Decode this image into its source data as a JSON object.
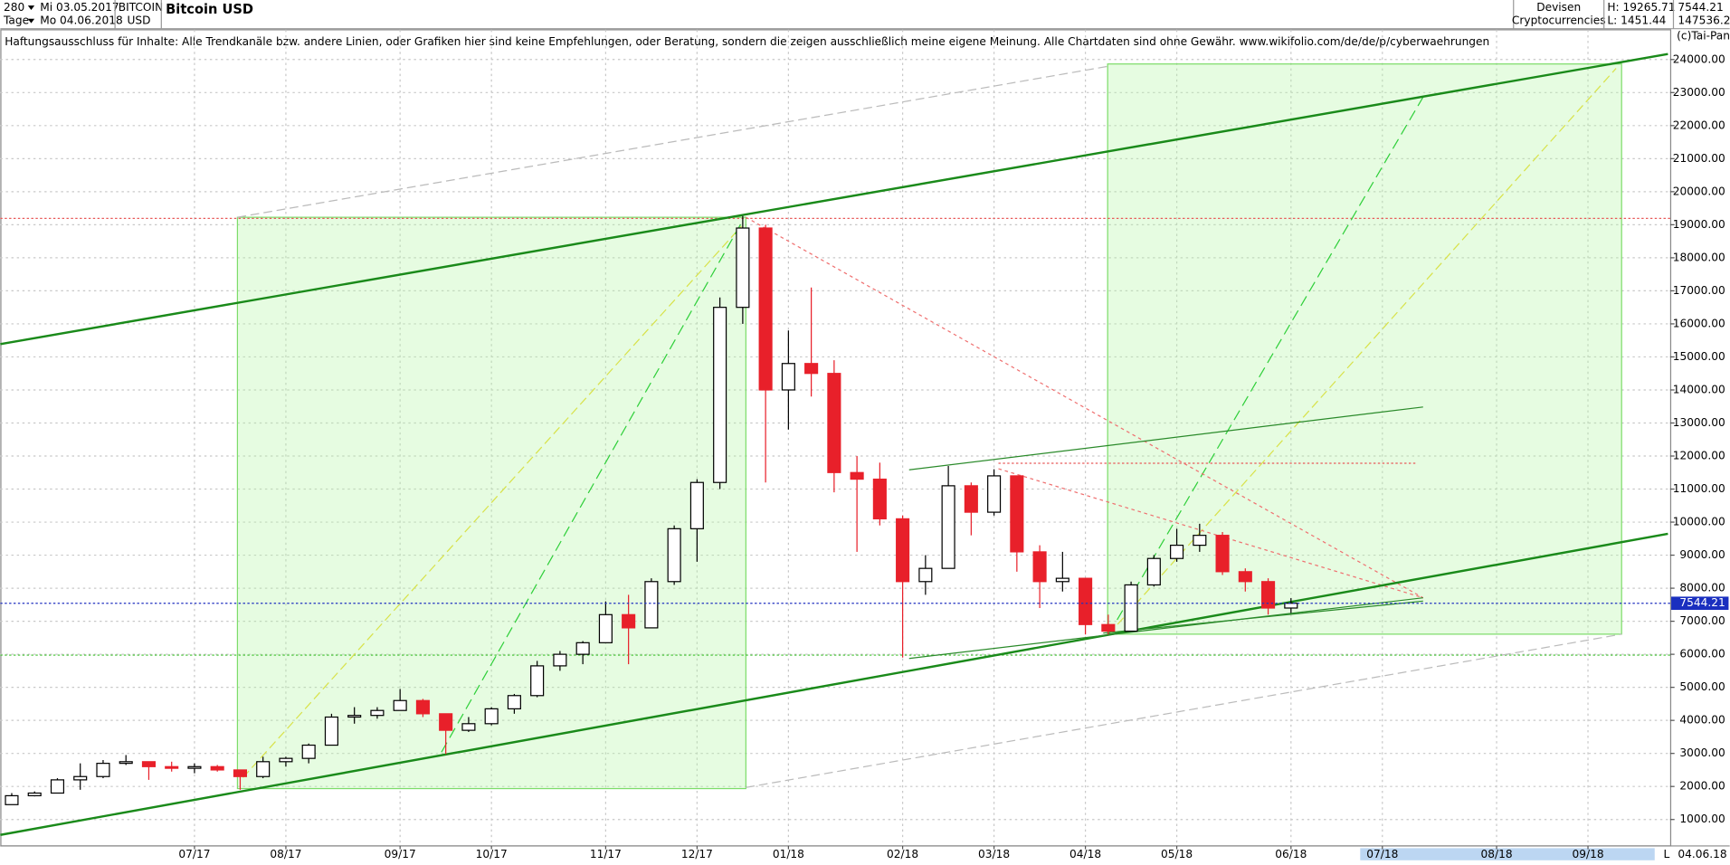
{
  "header": {
    "period": "280",
    "unit": "Tage",
    "from": "Mi 03.05.2017",
    "to": "Mo 04.06.2018",
    "symbol": "BITCOIN",
    "currency": "USD",
    "group": "Devisen",
    "subgroup": "Cryptocurrencies",
    "high": "H: 19265.71",
    "low": "L: 1451.44",
    "last": "7544.21",
    "volume": "147536.2",
    "disclaimer": "Haftungsausschluss für Inhalte: Alle Trendkanäle bzw. andere Linien, oder Grafiken hier sind keine Empfehlungen, oder Beratung, sondern die zeigen ausschließlich meine eigene Meinung. Alle Chartdaten sind ohne Gewähr.  www.wikifolio.com/de/de/p/cyberwaehrungen",
    "copyright": "(c)Tai-Pan",
    "footer_mode": "L",
    "footer_date": "04.06.18"
  },
  "chart_data": {
    "type": "candlestick",
    "title": "Bitcoin USD",
    "categories": [
      null,
      null,
      null,
      null,
      null,
      null,
      null,
      null,
      "07/17",
      null,
      null,
      null,
      "08/17",
      null,
      null,
      null,
      null,
      "09/17",
      null,
      null,
      null,
      "10/17",
      null,
      null,
      null,
      null,
      "11/17",
      null,
      null,
      null,
      "12/17",
      null,
      null,
      null,
      "01/18",
      null,
      null,
      null,
      null,
      "02/18",
      null,
      null,
      null,
      "03/18",
      null,
      null,
      null,
      "04/18",
      null,
      null,
      null,
      "05/18",
      null,
      null,
      null,
      null,
      "06/18",
      null,
      null,
      null,
      "07/18",
      null,
      null,
      null,
      null,
      "08/18",
      null,
      null,
      null,
      "09/18",
      null,
      null,
      null
    ],
    "open": [
      1450,
      1720,
      1800,
      2200,
      2300,
      2700,
      2750,
      2600,
      2550,
      2600,
      2500,
      2300,
      2750,
      2850,
      3250,
      4100,
      4150,
      4300,
      4600,
      4200,
      3700,
      3900,
      4350,
      4750,
      5650,
      6000,
      6350,
      7200,
      6800,
      8200,
      9800,
      11200,
      16500,
      18900,
      14000,
      14800,
      14500,
      11500,
      11300,
      10100,
      8200,
      8600,
      11100,
      10300,
      11400,
      9100,
      8200,
      8300,
      6900,
      6700,
      8100,
      8900,
      9300,
      9600,
      8500,
      8200,
      7400,
      null,
      null,
      null,
      null,
      null,
      null,
      null,
      null,
      null,
      null,
      null,
      null,
      null,
      null,
      null,
      null
    ],
    "high": [
      1800,
      1850,
      2250,
      2700,
      2800,
      2950,
      2750,
      2750,
      2700,
      2650,
      2500,
      2900,
      2900,
      3300,
      4200,
      4400,
      4400,
      4950,
      4650,
      4200,
      4100,
      4400,
      4800,
      5800,
      6100,
      6400,
      7600,
      7800,
      8300,
      9900,
      11300,
      16800,
      19265.71,
      19000,
      15800,
      17100,
      14900,
      12000,
      11800,
      10200,
      9000,
      11700,
      11200,
      11600,
      11400,
      9300,
      9100,
      8300,
      7200,
      8200,
      9000,
      9800,
      9950,
      9700,
      8600,
      8300,
      7700,
      null,
      null,
      null,
      null,
      null,
      null,
      null,
      null,
      null,
      null,
      null,
      null,
      null,
      null,
      null,
      null
    ],
    "low": [
      1451.44,
      1700,
      1800,
      1900,
      2250,
      2650,
      2200,
      2450,
      2400,
      2450,
      1900,
      2250,
      2600,
      2700,
      3250,
      3900,
      4050,
      4300,
      4100,
      2980,
      3650,
      3850,
      4200,
      4700,
      5500,
      5700,
      6350,
      5700,
      6800,
      8100,
      8800,
      11000,
      16000,
      11200,
      12800,
      13800,
      10900,
      9100,
      9900,
      5900,
      7800,
      8600,
      9600,
      10200,
      8500,
      7400,
      7900,
      6600,
      6600,
      6700,
      8050,
      8800,
      9100,
      8400,
      7900,
      7200,
      7250,
      null,
      null,
      null,
      null,
      null,
      null,
      null,
      null,
      null,
      null,
      null,
      null,
      null,
      null,
      null,
      null
    ],
    "close": [
      1720,
      1800,
      2200,
      2300,
      2700,
      2750,
      2600,
      2550,
      2600,
      2500,
      2300,
      2750,
      2850,
      3250,
      4100,
      4150,
      4300,
      4600,
      4200,
      3700,
      3900,
      4350,
      4750,
      5650,
      6000,
      6350,
      7200,
      6800,
      8200,
      9800,
      11200,
      16500,
      18900,
      14000,
      14800,
      14500,
      11500,
      11300,
      10100,
      8200,
      8600,
      11100,
      10300,
      11400,
      9100,
      8200,
      8300,
      6900,
      6700,
      8100,
      8900,
      9300,
      9600,
      8500,
      8200,
      7400,
      7544.21,
      null,
      null,
      null,
      null,
      null,
      null,
      null,
      null,
      null,
      null,
      null,
      null,
      null,
      null,
      null,
      null
    ],
    "up_color": "#000000",
    "down_color": "#e8202a",
    "current_price": 7544.21,
    "current_price_label": "7544.21",
    "ylim": [
      200,
      24900
    ],
    "yticks": [
      {
        "value": 1000,
        "label": "1000.00"
      },
      {
        "value": 2000,
        "label": "2000.00"
      },
      {
        "value": 3000,
        "label": "3000.00"
      },
      {
        "value": 4000,
        "label": "4000.00"
      },
      {
        "value": 5000,
        "label": "5000.00"
      },
      {
        "value": 6000,
        "label": "6000.00"
      },
      {
        "value": 7000,
        "label": "7000.00"
      },
      {
        "value": 8000,
        "label": "8000.00"
      },
      {
        "value": 9000,
        "label": "9000.00"
      },
      {
        "value": 10000,
        "label": "10000.00"
      },
      {
        "value": 11000,
        "label": "11000.00"
      },
      {
        "value": 12000,
        "label": "12000.00"
      },
      {
        "value": 13000,
        "label": "13000.00"
      },
      {
        "value": 14000,
        "label": "14000.00"
      },
      {
        "value": 15000,
        "label": "15000.00"
      },
      {
        "value": 16000,
        "label": "16000.00"
      },
      {
        "value": 17000,
        "label": "17000.00"
      },
      {
        "value": 18000,
        "label": "18000.00"
      },
      {
        "value": 19000,
        "label": "19000.00"
      },
      {
        "value": 20000,
        "label": "20000.00"
      },
      {
        "value": 21000,
        "label": "21000.00"
      },
      {
        "value": 22000,
        "label": "22000.00"
      },
      {
        "value": 23000,
        "label": "23000.00"
      },
      {
        "value": 24000,
        "label": "24000.00"
      }
    ],
    "grid": true
  }
}
